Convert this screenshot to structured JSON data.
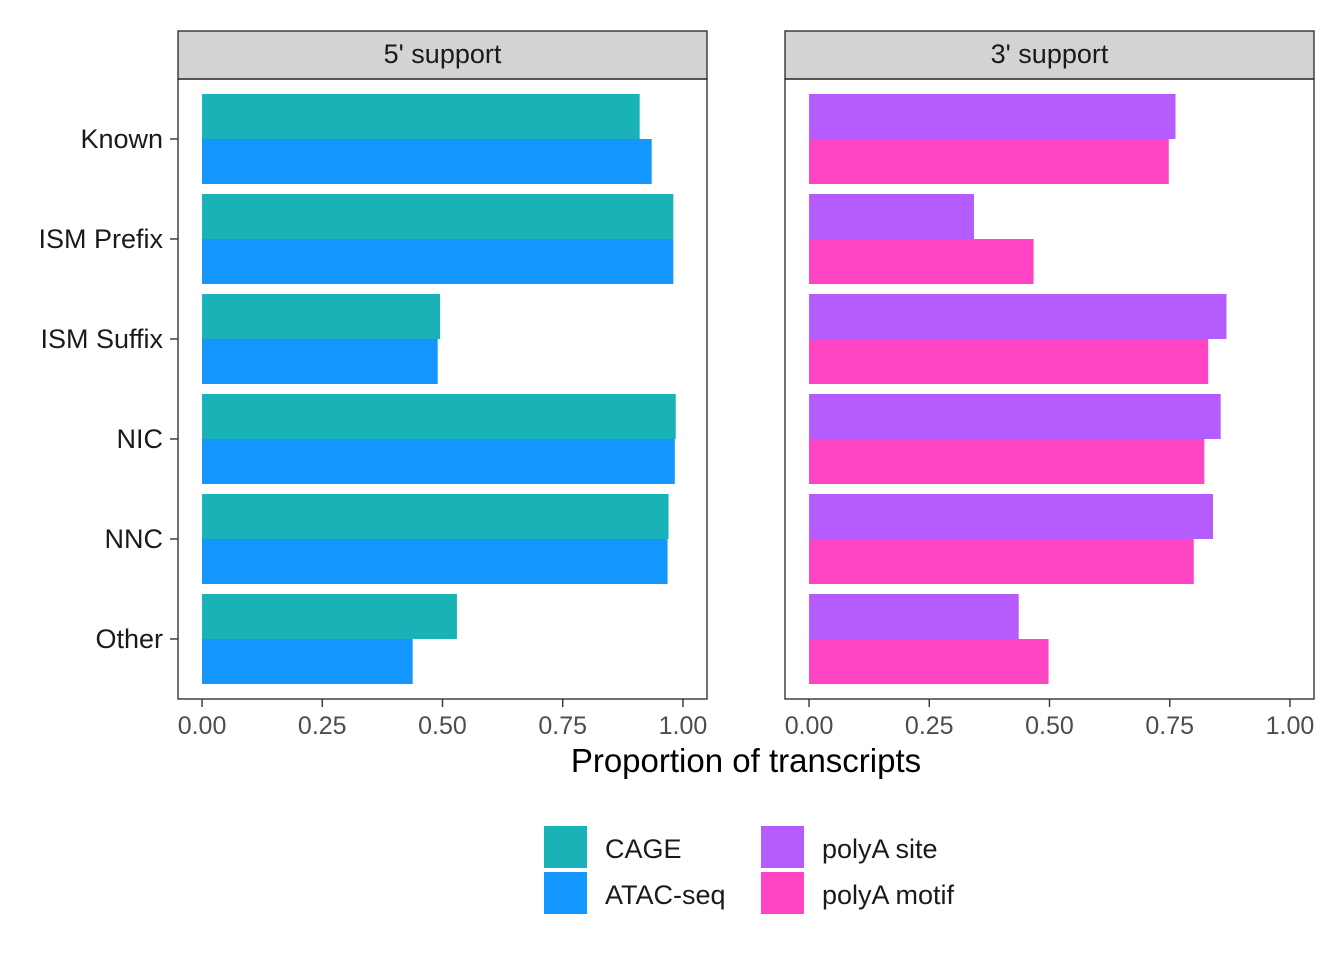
{
  "chart_data": {
    "type": "bar",
    "orientation": "horizontal",
    "xlabel": "Proportion of transcripts",
    "xlim": [
      0,
      1
    ],
    "x_ticks": [
      0,
      0.25,
      0.5,
      0.75,
      1
    ],
    "x_tick_labels": [
      "0.00",
      "0.25",
      "0.50",
      "0.75",
      "1.00"
    ],
    "categories": [
      "Known",
      "ISM Prefix",
      "ISM Suffix",
      "NIC",
      "NNC",
      "Other"
    ],
    "legend_position": "bottom",
    "facets": [
      {
        "title": "5' support",
        "series": [
          {
            "name": "CAGE",
            "color": "#19B2B6",
            "values": [
              0.91,
              0.98,
              0.495,
              0.985,
              0.97,
              0.53
            ]
          },
          {
            "name": "ATAC-seq",
            "color": "#1496FF",
            "values": [
              0.935,
              0.98,
              0.49,
              0.983,
              0.968,
              0.438
            ]
          }
        ]
      },
      {
        "title": "3' support",
        "series": [
          {
            "name": "polyA site",
            "color": "#B55CFF",
            "values": [
              0.762,
              0.343,
              0.868,
              0.856,
              0.84,
              0.436
            ]
          },
          {
            "name": "polyA motif",
            "color": "#FF45C3",
            "values": [
              0.748,
              0.467,
              0.83,
              0.822,
              0.8,
              0.498
            ]
          }
        ]
      }
    ],
    "legend": [
      {
        "label": "CAGE",
        "color": "#19B2B6"
      },
      {
        "label": "ATAC-seq",
        "color": "#1496FF"
      },
      {
        "label": "polyA site",
        "color": "#B55CFF"
      },
      {
        "label": "polyA motif",
        "color": "#FF45C3"
      }
    ]
  }
}
